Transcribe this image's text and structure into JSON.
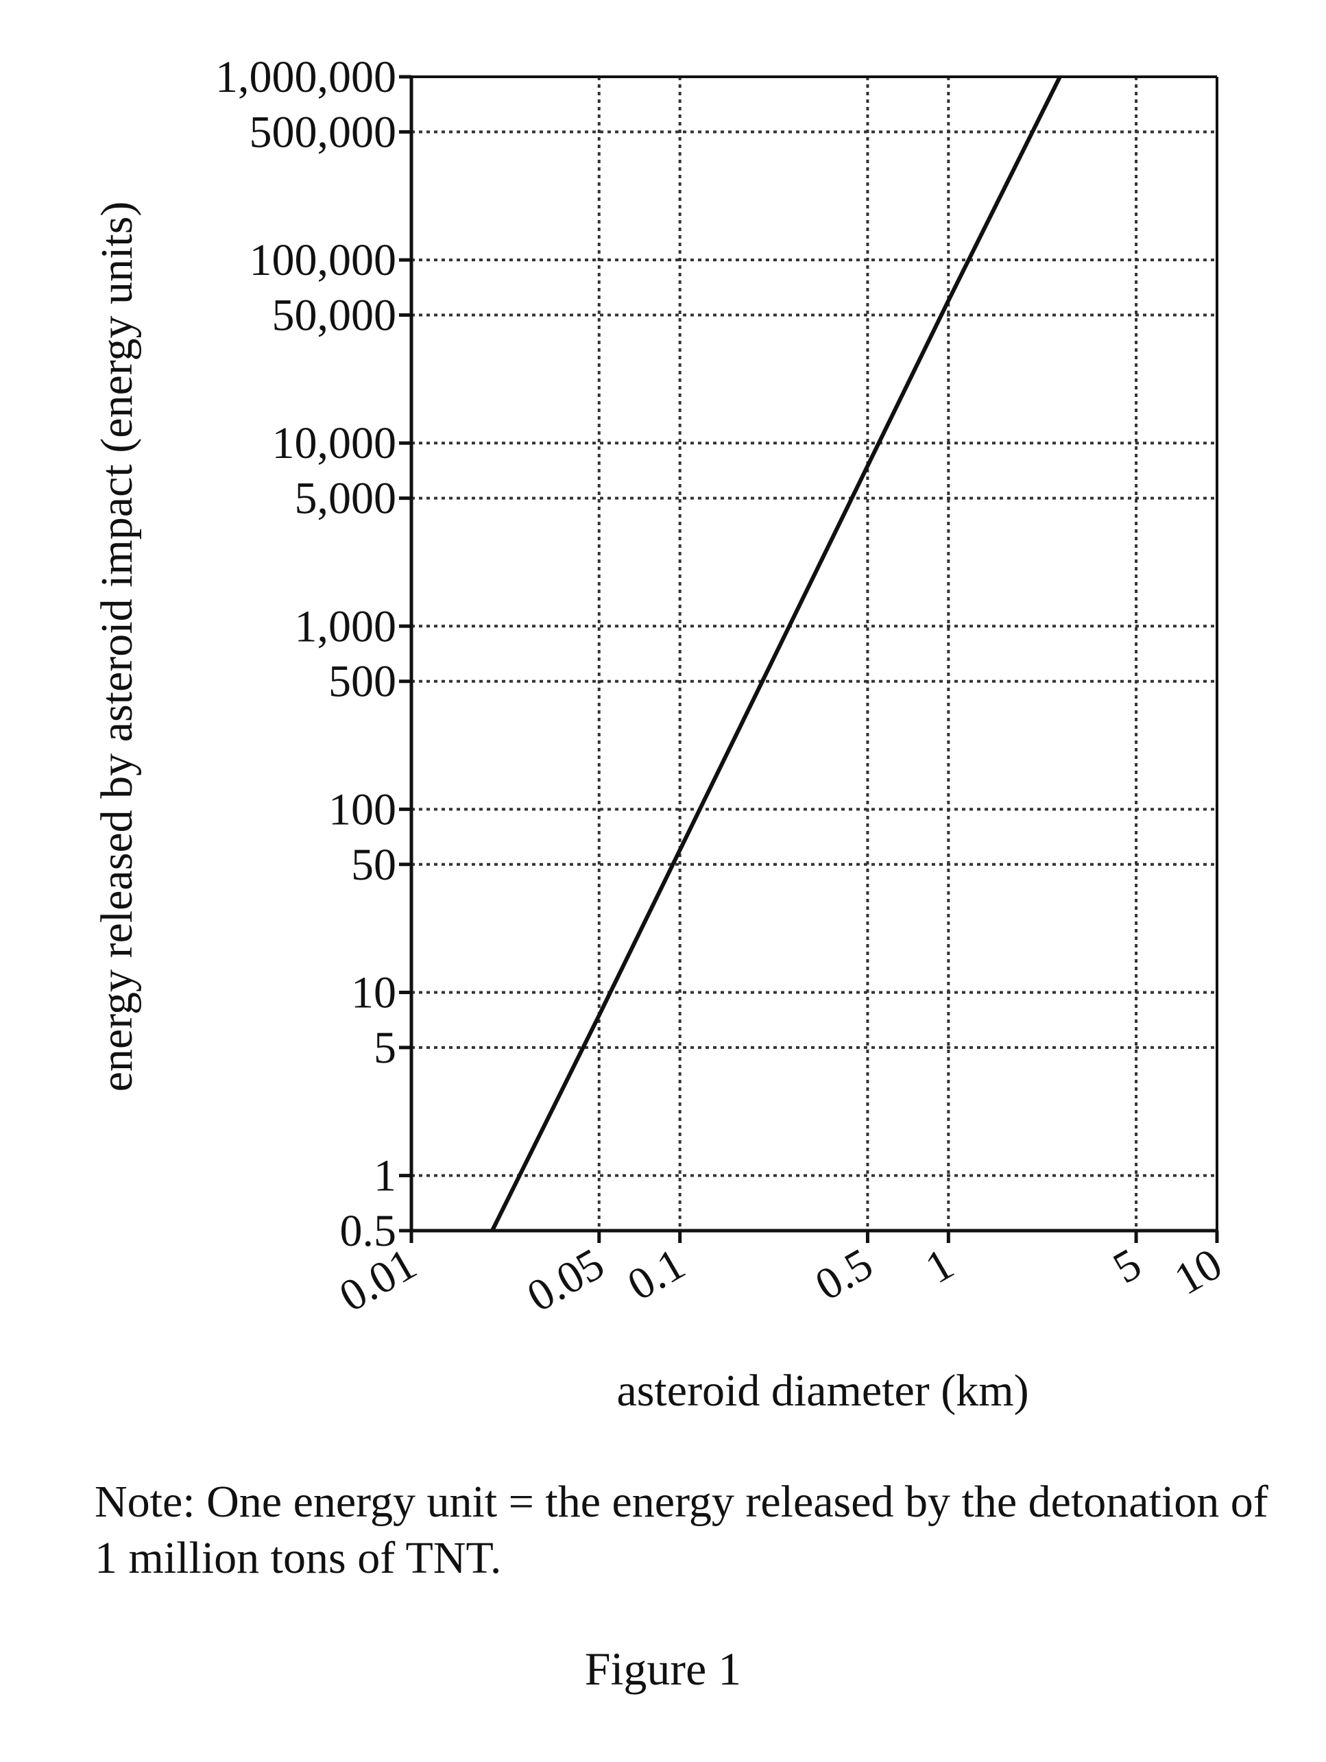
{
  "chart_data": {
    "type": "line",
    "xlabel": "asteroid diameter (km)",
    "ylabel": "energy released by asteroid impact (energy units)",
    "x_scale": "log",
    "y_scale": "log",
    "xlim": [
      0.01,
      10
    ],
    "ylim": [
      0.5,
      1000000
    ],
    "x_ticks": [
      {
        "value": 0.01,
        "label": "0.01"
      },
      {
        "value": 0.05,
        "label": "0.05"
      },
      {
        "value": 0.1,
        "label": "0.1"
      },
      {
        "value": 0.5,
        "label": "0.5"
      },
      {
        "value": 1,
        "label": "1"
      },
      {
        "value": 5,
        "label": "5"
      },
      {
        "value": 10,
        "label": "10"
      }
    ],
    "y_ticks": [
      {
        "value": 0.5,
        "label": "0.5"
      },
      {
        "value": 1,
        "label": "1"
      },
      {
        "value": 5,
        "label": "5"
      },
      {
        "value": 10,
        "label": "10"
      },
      {
        "value": 50,
        "label": "50"
      },
      {
        "value": 100,
        "label": "100"
      },
      {
        "value": 500,
        "label": "500"
      },
      {
        "value": 1000,
        "label": "1,000"
      },
      {
        "value": 5000,
        "label": "5,000"
      },
      {
        "value": 10000,
        "label": "10,000"
      },
      {
        "value": 50000,
        "label": "50,000"
      },
      {
        "value": 100000,
        "label": "100,000"
      },
      {
        "value": 500000,
        "label": "500,000"
      },
      {
        "value": 1000000,
        "label": "1,000,000"
      }
    ],
    "grid": true,
    "series": [
      {
        "x": [
          0.02,
          0.05,
          0.1,
          0.5,
          1,
          2.6
        ],
        "y": [
          0.5,
          7.5,
          60,
          7500,
          60000,
          1000000
        ]
      }
    ]
  },
  "note": "Note: One energy unit = the energy released by the detonation of 1 million tons of TNT.",
  "caption": "Figure 1"
}
